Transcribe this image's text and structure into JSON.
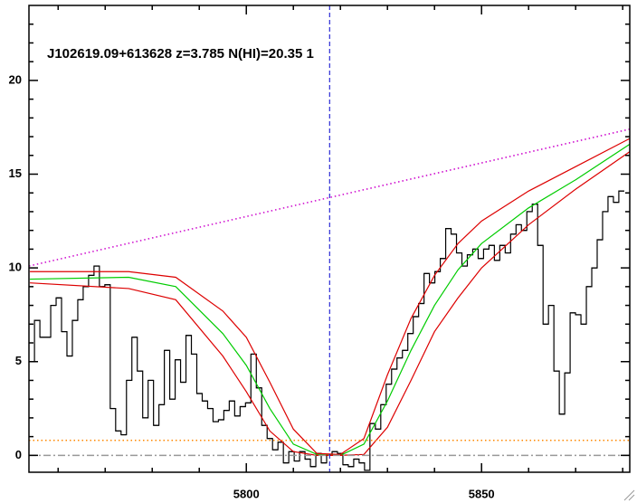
{
  "chart_data": {
    "type": "line",
    "title": "J102619.09+613628 z=3.785 N(HI)=20.35 1",
    "xlim": [
      5753.8,
      5881.5
    ],
    "ylim": [
      -0.9,
      24
    ],
    "xticks": [
      5800,
      5850
    ],
    "yticks": [
      0,
      5,
      10,
      15,
      20
    ],
    "xminorticks": [
      5760,
      5770,
      5780,
      5790,
      5810,
      5820,
      5830,
      5840,
      5860,
      5870,
      5880
    ],
    "yminorticks": [
      1,
      2,
      3,
      4,
      6,
      7,
      8,
      9,
      11,
      12,
      13,
      14,
      16,
      17,
      18,
      19,
      21,
      22,
      23
    ],
    "vline": 5817.7,
    "vline_color": "#0000cc",
    "series": [
      {
        "color": "#000000",
        "style": "step",
        "x": [
          5754.4,
          5755.55,
          5756.7,
          5757.85,
          5759,
          5760.15,
          5761.3,
          5762.45,
          5763.6,
          5764.75,
          5765.9,
          5767.05,
          5768.2,
          5769.35,
          5770.5,
          5771.65,
          5772.8,
          5773.95,
          5775.1,
          5776.25,
          5777.4,
          5778.55,
          5779.7,
          5780.85,
          5782,
          5783.15,
          5784.3,
          5785.45,
          5786.6,
          5787.75,
          5788.9,
          5790.05,
          5791.2,
          5792.35,
          5793.5,
          5794.65,
          5795.8,
          5796.95,
          5798.1,
          5799.25,
          5800.4,
          5801.55,
          5802.7,
          5803.85,
          5805,
          5806.15,
          5807.3,
          5808.45,
          5809.6,
          5810.75,
          5811.9,
          5813.05,
          5814.2,
          5815.35,
          5816.5,
          5817.65,
          5818.8,
          5819.95,
          5821.1,
          5822.25,
          5823.4,
          5824.55,
          5825.7,
          5826.85,
          5828,
          5829.15,
          5830.3,
          5831.45,
          5832.6,
          5833.75,
          5834.9,
          5836.05,
          5837.2,
          5838.35,
          5839.5,
          5840.65,
          5841.8,
          5842.95,
          5844.1,
          5845.25,
          5846.4,
          5847.55,
          5848.7,
          5849.85,
          5851,
          5852.15,
          5853.3,
          5854.45,
          5855.6,
          5856.75,
          5857.9,
          5859.05,
          5860.2,
          5861.35,
          5862.5,
          5863.65,
          5864.8,
          5865.95,
          5867.1,
          5868.25,
          5869.4,
          5870.55,
          5871.7,
          5872.85,
          5874,
          5875.15,
          5876.3,
          5877.45,
          5878.6,
          5879.75
        ],
        "values": [
          5,
          7.2,
          6.3,
          6.3,
          8,
          8.4,
          6.6,
          5.3,
          7.2,
          8.3,
          9,
          9.6,
          10.1,
          9,
          9.1,
          2.5,
          1.3,
          1.1,
          4,
          6.3,
          4.5,
          2,
          4,
          1.6,
          2.7,
          5.6,
          3,
          5.1,
          3.9,
          6.4,
          5.4,
          3.3,
          2.9,
          2.5,
          1.8,
          1.9,
          2.4,
          2.9,
          2.1,
          2.6,
          2.8,
          5.4,
          3.6,
          1.6,
          0.9,
          0.3,
          0.7,
          -0.4,
          0.2,
          -0.3,
          0.2,
          -0.2,
          -0.6,
          0.1,
          -0.4,
          0,
          0.2,
          0.1,
          -0.5,
          -0.6,
          -0.2,
          -0.4,
          -0.8,
          1.7,
          1.4,
          2.7,
          3.8,
          4.6,
          5.2,
          5.6,
          6.5,
          7.4,
          8.1,
          9.7,
          9.2,
          9.8,
          10.5,
          12.1,
          11.8,
          10.8,
          10.1,
          10.7,
          11,
          10.5,
          11,
          11.2,
          10.4,
          11.2,
          10.8,
          11.8,
          12.3,
          12,
          13,
          13.4,
          11.2,
          7,
          8,
          4.5,
          2.2,
          4.4,
          7.6,
          7.5,
          7,
          9,
          10,
          11.5,
          13,
          13.8,
          13.5,
          14.1
        ]
      },
      {
        "color": "#00cc00",
        "style": "solid",
        "x": [
          5754,
          5775,
          5785,
          5795,
          5800,
          5805,
          5810,
          5815,
          5820,
          5825,
          5830,
          5835,
          5840,
          5845,
          5850,
          5860,
          5870,
          5881.5
        ],
        "values": [
          9.4,
          9.5,
          9,
          6.5,
          4.8,
          2.5,
          0.6,
          0.05,
          0,
          0.6,
          2.9,
          5.6,
          8,
          9.9,
          11.3,
          13.2,
          14.7,
          16.6
        ]
      },
      {
        "color": "#dd0000",
        "style": "solid",
        "x": [
          5754,
          5775,
          5785,
          5795,
          5800,
          5805,
          5810,
          5815,
          5820,
          5825,
          5830,
          5835,
          5840,
          5845,
          5850,
          5860,
          5870,
          5881.5
        ],
        "values": [
          9.8,
          9.8,
          9.5,
          7.7,
          6.3,
          3.9,
          1.4,
          0.1,
          0.05,
          0.9,
          4.3,
          7.3,
          9.6,
          11.3,
          12.5,
          14.1,
          15.4,
          16.9
        ]
      },
      {
        "color": "#dd0000",
        "style": "solid",
        "x": [
          5754,
          5775,
          5785,
          5795,
          5800,
          5805,
          5810,
          5815,
          5820,
          5825,
          5830,
          5835,
          5840,
          5845,
          5850,
          5860,
          5870,
          5881.5
        ],
        "values": [
          9.2,
          8.9,
          8.3,
          5.3,
          3.4,
          1.3,
          0.2,
          0,
          0,
          0.05,
          1.5,
          4,
          6.6,
          8.4,
          10,
          12.3,
          14.2,
          16.2
        ]
      },
      {
        "color": "#cc00cc",
        "style": "dotted",
        "x": [
          5753.8,
          5881.5
        ],
        "values": [
          10.1,
          17.4
        ]
      },
      {
        "color": "#ff8800",
        "style": "dotted",
        "x": [
          5753.8,
          5881.5
        ],
        "values": [
          0.8,
          0.8
        ]
      },
      {
        "color": "#999999",
        "style": "dashdot",
        "x": [
          5753.8,
          5881.5
        ],
        "values": [
          0,
          0
        ]
      }
    ]
  }
}
